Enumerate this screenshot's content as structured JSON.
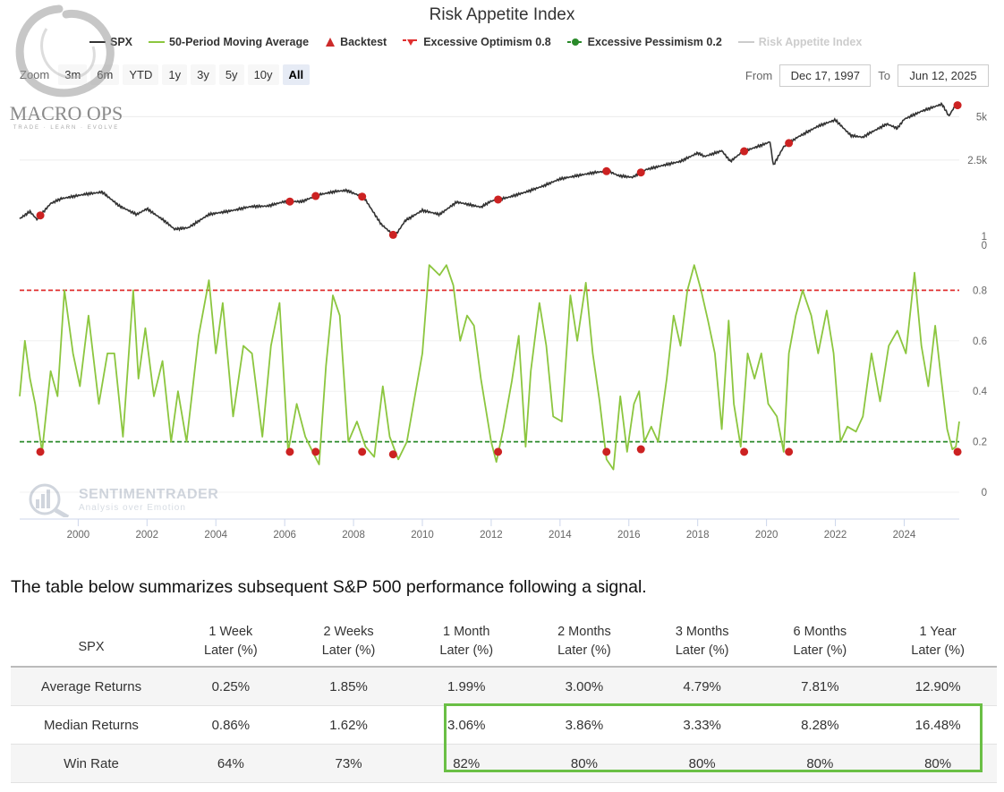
{
  "title": "Risk Appetite Index",
  "watermark": {
    "brand": "MACRO OPS",
    "tagline": "TRADE · LEARN · EVOLVE"
  },
  "legend": [
    {
      "label": "SPX",
      "symbol": "line",
      "color": "#333333",
      "muted": false
    },
    {
      "label": "50-Period Moving Average",
      "symbol": "line",
      "color": "#8cc63f",
      "muted": false
    },
    {
      "label": "Backtest",
      "symbol": "triangle",
      "color": "#cc2a2a",
      "muted": false
    },
    {
      "label": "Excessive Optimism 0.8",
      "symbol": "dash-tri",
      "color": "#e03030",
      "muted": false
    },
    {
      "label": "Excessive Pessimism 0.2",
      "symbol": "dash-dot",
      "color": "#2a8a2a",
      "muted": false
    },
    {
      "label": "Risk Appetite Index",
      "symbol": "line",
      "color": "#cccccc",
      "muted": true
    }
  ],
  "zoom": {
    "label": "Zoom",
    "buttons": [
      "3m",
      "6m",
      "YTD",
      "1y",
      "3y",
      "5y",
      "10y",
      "All"
    ],
    "active": "All"
  },
  "range": {
    "from_label": "From",
    "from": "Dec 17, 1997",
    "to_label": "To",
    "to": "Jun 12, 2025"
  },
  "sentiment_logo": {
    "title": "SENTIMENTRADER",
    "subtitle": "Analysis over Emotion"
  },
  "colors": {
    "spx": "#333333",
    "ma": "#8cc63f",
    "optimism": "#e03030",
    "pessimism": "#2a8a2a",
    "signal": "#cc2222",
    "highlight": "#6abf45"
  },
  "chart_data": {
    "type": "line",
    "x_ticks": [
      "2000",
      "2002",
      "2004",
      "2006",
      "2008",
      "2010",
      "2012",
      "2014",
      "2016",
      "2018",
      "2020",
      "2022",
      "2024"
    ],
    "x_range": [
      1998.3,
      2025.6
    ],
    "spx_axis": {
      "ticks": [
        "5k",
        "2.5k",
        "1",
        "0"
      ],
      "scale": "log"
    },
    "index_axis": {
      "ticks": [
        "0.8",
        "0.6",
        "0.4",
        "0.2",
        "0"
      ],
      "ylim": [
        0,
        1
      ]
    },
    "thresholds": {
      "optimism": 0.8,
      "pessimism": 0.2
    },
    "spx_series": [
      [
        1998.3,
        980
      ],
      [
        1998.6,
        1100
      ],
      [
        1998.8,
        970
      ],
      [
        1999.2,
        1250
      ],
      [
        1999.5,
        1350
      ],
      [
        2000.2,
        1450
      ],
      [
        2000.7,
        1500
      ],
      [
        2001.2,
        1200
      ],
      [
        2001.7,
        1050
      ],
      [
        2002.0,
        1150
      ],
      [
        2002.5,
        950
      ],
      [
        2002.8,
        830
      ],
      [
        2003.2,
        850
      ],
      [
        2003.8,
        1050
      ],
      [
        2004.5,
        1120
      ],
      [
        2005.0,
        1190
      ],
      [
        2005.5,
        1200
      ],
      [
        2006.0,
        1290
      ],
      [
        2006.5,
        1290
      ],
      [
        2007.0,
        1440
      ],
      [
        2007.5,
        1520
      ],
      [
        2007.8,
        1540
      ],
      [
        2008.3,
        1380
      ],
      [
        2008.8,
        900
      ],
      [
        2009.2,
        740
      ],
      [
        2009.5,
        950
      ],
      [
        2010.0,
        1120
      ],
      [
        2010.5,
        1050
      ],
      [
        2011.0,
        1280
      ],
      [
        2011.7,
        1180
      ],
      [
        2012.0,
        1300
      ],
      [
        2012.5,
        1380
      ],
      [
        2013.0,
        1500
      ],
      [
        2013.5,
        1650
      ],
      [
        2014.0,
        1850
      ],
      [
        2014.5,
        1950
      ],
      [
        2015.0,
        2050
      ],
      [
        2015.4,
        2100
      ],
      [
        2015.7,
        1950
      ],
      [
        2016.1,
        1900
      ],
      [
        2016.5,
        2150
      ],
      [
        2017.0,
        2300
      ],
      [
        2017.5,
        2450
      ],
      [
        2018.0,
        2800
      ],
      [
        2018.2,
        2650
      ],
      [
        2018.7,
        2900
      ],
      [
        2018.95,
        2450
      ],
      [
        2019.3,
        2850
      ],
      [
        2019.9,
        3200
      ],
      [
        2020.1,
        3350
      ],
      [
        2020.2,
        2300
      ],
      [
        2020.5,
        3100
      ],
      [
        2020.9,
        3600
      ],
      [
        2021.5,
        4300
      ],
      [
        2022.0,
        4750
      ],
      [
        2022.45,
        3700
      ],
      [
        2022.8,
        3600
      ],
      [
        2023.0,
        3850
      ],
      [
        2023.5,
        4450
      ],
      [
        2023.8,
        4150
      ],
      [
        2024.0,
        4800
      ],
      [
        2024.5,
        5450
      ],
      [
        2025.0,
        6000
      ],
      [
        2025.1,
        6100
      ],
      [
        2025.3,
        5050
      ],
      [
        2025.45,
        5800
      ],
      [
        2025.55,
        6000
      ]
    ],
    "risk_appetite_ma": [
      [
        1998.3,
        0.38
      ],
      [
        1998.45,
        0.6
      ],
      [
        1998.6,
        0.45
      ],
      [
        1998.75,
        0.35
      ],
      [
        1998.95,
        0.16
      ],
      [
        1999.2,
        0.48
      ],
      [
        1999.4,
        0.38
      ],
      [
        1999.6,
        0.8
      ],
      [
        1999.85,
        0.55
      ],
      [
        2000.05,
        0.42
      ],
      [
        2000.3,
        0.7
      ],
      [
        2000.6,
        0.35
      ],
      [
        2000.85,
        0.55
      ],
      [
        2001.05,
        0.55
      ],
      [
        2001.3,
        0.22
      ],
      [
        2001.6,
        0.8
      ],
      [
        2001.75,
        0.45
      ],
      [
        2001.95,
        0.65
      ],
      [
        2002.2,
        0.38
      ],
      [
        2002.45,
        0.52
      ],
      [
        2002.7,
        0.2
      ],
      [
        2002.9,
        0.4
      ],
      [
        2003.15,
        0.2
      ],
      [
        2003.5,
        0.62
      ],
      [
        2003.8,
        0.84
      ],
      [
        2004.0,
        0.55
      ],
      [
        2004.2,
        0.75
      ],
      [
        2004.5,
        0.3
      ],
      [
        2004.8,
        0.58
      ],
      [
        2005.05,
        0.55
      ],
      [
        2005.35,
        0.22
      ],
      [
        2005.6,
        0.58
      ],
      [
        2005.85,
        0.75
      ],
      [
        2006.1,
        0.16
      ],
      [
        2006.35,
        0.35
      ],
      [
        2006.6,
        0.22
      ],
      [
        2006.85,
        0.15
      ],
      [
        2007.0,
        0.11
      ],
      [
        2007.2,
        0.5
      ],
      [
        2007.4,
        0.78
      ],
      [
        2007.6,
        0.7
      ],
      [
        2007.85,
        0.2
      ],
      [
        2008.1,
        0.28
      ],
      [
        2008.35,
        0.18
      ],
      [
        2008.6,
        0.14
      ],
      [
        2008.85,
        0.42
      ],
      [
        2009.05,
        0.22
      ],
      [
        2009.3,
        0.13
      ],
      [
        2009.55,
        0.2
      ],
      [
        2010.0,
        0.55
      ],
      [
        2010.2,
        0.9
      ],
      [
        2010.5,
        0.86
      ],
      [
        2010.7,
        0.9
      ],
      [
        2010.9,
        0.82
      ],
      [
        2011.1,
        0.6
      ],
      [
        2011.3,
        0.7
      ],
      [
        2011.5,
        0.66
      ],
      [
        2011.7,
        0.45
      ],
      [
        2012.0,
        0.2
      ],
      [
        2012.15,
        0.12
      ],
      [
        2012.35,
        0.25
      ],
      [
        2012.6,
        0.44
      ],
      [
        2012.8,
        0.62
      ],
      [
        2013.0,
        0.18
      ],
      [
        2013.15,
        0.48
      ],
      [
        2013.4,
        0.75
      ],
      [
        2013.6,
        0.58
      ],
      [
        2013.8,
        0.3
      ],
      [
        2014.05,
        0.28
      ],
      [
        2014.3,
        0.78
      ],
      [
        2014.5,
        0.6
      ],
      [
        2014.75,
        0.83
      ],
      [
        2014.95,
        0.55
      ],
      [
        2015.15,
        0.36
      ],
      [
        2015.35,
        0.13
      ],
      [
        2015.55,
        0.09
      ],
      [
        2015.75,
        0.38
      ],
      [
        2015.95,
        0.16
      ],
      [
        2016.15,
        0.35
      ],
      [
        2016.3,
        0.4
      ],
      [
        2016.45,
        0.2
      ],
      [
        2016.65,
        0.26
      ],
      [
        2016.85,
        0.2
      ],
      [
        2017.1,
        0.45
      ],
      [
        2017.3,
        0.7
      ],
      [
        2017.5,
        0.58
      ],
      [
        2017.7,
        0.8
      ],
      [
        2017.9,
        0.9
      ],
      [
        2018.1,
        0.8
      ],
      [
        2018.3,
        0.68
      ],
      [
        2018.5,
        0.55
      ],
      [
        2018.7,
        0.25
      ],
      [
        2018.9,
        0.68
      ],
      [
        2019.05,
        0.35
      ],
      [
        2019.25,
        0.18
      ],
      [
        2019.45,
        0.55
      ],
      [
        2019.65,
        0.45
      ],
      [
        2019.85,
        0.55
      ],
      [
        2020.05,
        0.35
      ],
      [
        2020.3,
        0.3
      ],
      [
        2020.5,
        0.16
      ],
      [
        2020.65,
        0.55
      ],
      [
        2020.85,
        0.7
      ],
      [
        2021.05,
        0.8
      ],
      [
        2021.3,
        0.7
      ],
      [
        2021.5,
        0.55
      ],
      [
        2021.75,
        0.72
      ],
      [
        2021.95,
        0.55
      ],
      [
        2022.15,
        0.2
      ],
      [
        2022.35,
        0.26
      ],
      [
        2022.6,
        0.24
      ],
      [
        2022.8,
        0.3
      ],
      [
        2023.05,
        0.55
      ],
      [
        2023.3,
        0.36
      ],
      [
        2023.55,
        0.58
      ],
      [
        2023.8,
        0.64
      ],
      [
        2024.05,
        0.55
      ],
      [
        2024.3,
        0.87
      ],
      [
        2024.5,
        0.58
      ],
      [
        2024.7,
        0.42
      ],
      [
        2024.9,
        0.66
      ],
      [
        2025.05,
        0.48
      ],
      [
        2025.25,
        0.25
      ],
      [
        2025.4,
        0.17
      ],
      [
        2025.5,
        0.18
      ],
      [
        2025.6,
        0.28
      ]
    ],
    "signal_dates": [
      1998.9,
      2006.15,
      2006.9,
      2008.25,
      2009.15,
      2012.2,
      2015.35,
      2016.35,
      2019.35,
      2020.65,
      2025.55
    ],
    "signal_index_values": [
      0.16,
      0.16,
      0.16,
      0.16,
      0.15,
      0.16,
      0.16,
      0.17,
      0.16,
      0.16,
      0.16
    ]
  },
  "intro_text": "The table below summarizes subsequent S&P 500 performance following a signal.",
  "table": {
    "row_header": "SPX",
    "columns": [
      {
        "line1": "1 Week",
        "line2": "Later (%)"
      },
      {
        "line1": "2 Weeks",
        "line2": "Later (%)"
      },
      {
        "line1": "1 Month",
        "line2": "Later (%)"
      },
      {
        "line1": "2 Months",
        "line2": "Later (%)"
      },
      {
        "line1": "3 Months",
        "line2": "Later (%)"
      },
      {
        "line1": "6 Months",
        "line2": "Later (%)"
      },
      {
        "line1": "1 Year",
        "line2": "Later (%)"
      }
    ],
    "rows": [
      {
        "label": "Average Returns",
        "values": [
          "0.25%",
          "1.85%",
          "1.99%",
          "3.00%",
          "4.79%",
          "7.81%",
          "12.90%"
        ]
      },
      {
        "label": "Median Returns",
        "values": [
          "0.86%",
          "1.62%",
          "3.06%",
          "3.86%",
          "3.33%",
          "8.28%",
          "16.48%"
        ]
      },
      {
        "label": "Win Rate",
        "values": [
          "64%",
          "73%",
          "82%",
          "80%",
          "80%",
          "80%",
          "80%"
        ]
      }
    ]
  }
}
